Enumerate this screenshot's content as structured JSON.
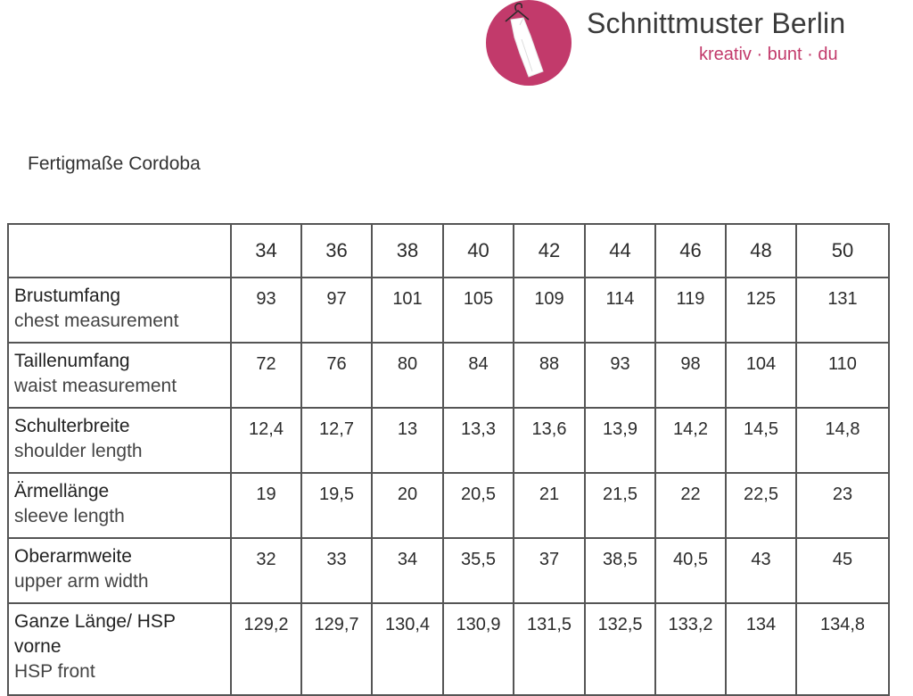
{
  "brand": {
    "name": "Schnittmuster Berlin",
    "tagline": "kreativ · bunt · du",
    "accent_color": "#c23a6b",
    "logo_icon": "dress-on-hanger-icon"
  },
  "page": {
    "title": "Fertigmaße Cordoba"
  },
  "table": {
    "corner": "",
    "sizes": [
      "34",
      "36",
      "38",
      "40",
      "42",
      "44",
      "46",
      "48",
      "50"
    ],
    "rows": [
      {
        "label_de": "Brustumfang",
        "label_en": "chest measurement",
        "values": [
          "93",
          "97",
          "101",
          "105",
          "109",
          "114",
          "119",
          "125",
          "131"
        ]
      },
      {
        "label_de": "Taillenumfang",
        "label_en": "waist measurement",
        "values": [
          "72",
          "76",
          "80",
          "84",
          "88",
          "93",
          "98",
          "104",
          "110"
        ]
      },
      {
        "label_de": "Schulterbreite",
        "label_en": "shoulder length",
        "values": [
          "12,4",
          "12,7",
          "13",
          "13,3",
          "13,6",
          "13,9",
          "14,2",
          "14,5",
          "14,8"
        ]
      },
      {
        "label_de": "Ärmellänge",
        "label_en": "sleeve length",
        "values": [
          "19",
          "19,5",
          "20",
          "20,5",
          "21",
          "21,5",
          "22",
          "22,5",
          "23"
        ]
      },
      {
        "label_de": "Oberarmweite",
        "label_en": "upper arm width",
        "values": [
          "32",
          "33",
          "34",
          "35,5",
          "37",
          "38,5",
          "40,5",
          "43",
          "45"
        ]
      },
      {
        "label_de": "Ganze Länge/ HSP vorne",
        "label_en": "HSP front",
        "values": [
          "129,2",
          "129,7",
          "130,4",
          "130,9",
          "131,5",
          "132,5",
          "133,2",
          "134",
          "134,8"
        ]
      }
    ]
  }
}
